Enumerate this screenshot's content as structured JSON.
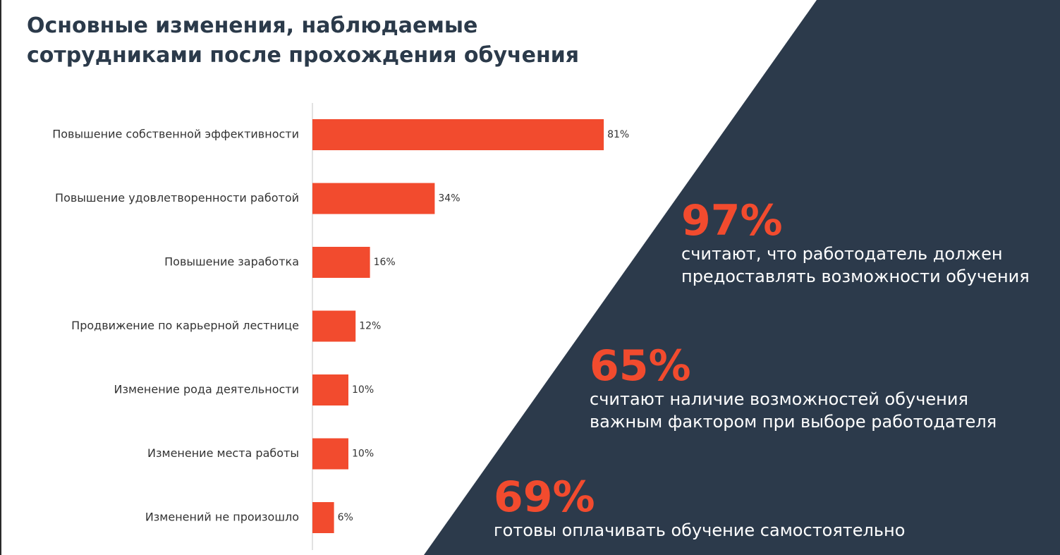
{
  "title_lines": [
    "Основные изменения, наблюдаемые",
    "сотрудниками после прохождения обучения"
  ],
  "colors": {
    "bar": "#f24b2e",
    "accent": "#f24b2e",
    "panel": "#2c3a4b",
    "axis": "#d9d9d9",
    "label": "#333333"
  },
  "chart_data": {
    "type": "bar",
    "orientation": "horizontal",
    "categories": [
      "Повышение собственной эффективности",
      "Повышение удовлетворенности работой",
      "Повышение заработка",
      "Продвижение по карьерной лестнице",
      "Изменение рода деятельности",
      "Изменение места работы",
      "Изменений не произошло"
    ],
    "values": [
      81,
      34,
      16,
      12,
      10,
      10,
      6
    ],
    "value_labels": [
      "81%",
      "34%",
      "16%",
      "12%",
      "10%",
      "10%",
      "6%"
    ],
    "unit": "%",
    "xlim": [
      0,
      100
    ]
  },
  "stats": [
    {
      "value": "97%",
      "lines": [
        "считают, что работодатель должен",
        "предоставлять возможности обучения"
      ]
    },
    {
      "value": "65%",
      "lines": [
        "считают наличие возможностей обучения",
        "важным фактором при выборе работодателя"
      ]
    },
    {
      "value": "69%",
      "lines": [
        "готовы оплачивать обучение самостоятельно"
      ]
    }
  ]
}
